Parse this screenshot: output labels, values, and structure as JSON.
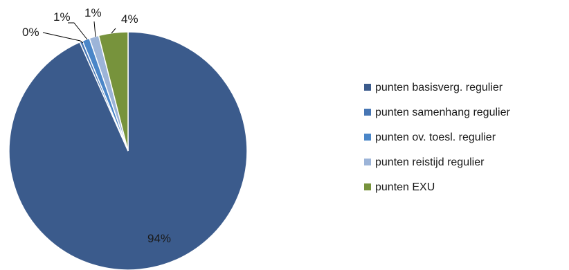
{
  "chart_data": {
    "type": "pie",
    "categories": [
      "punten basisverg. regulier",
      "punten samenhang regulier",
      "punten ov. toesl. regulier",
      "punten reistijd regulier",
      "punten EXU"
    ],
    "values": [
      94,
      0.4,
      1,
      1.3,
      4
    ],
    "data_labels": [
      "94%",
      "0%",
      "1%",
      "1%",
      "4%"
    ],
    "colors": [
      "#3b5b8c",
      "#4776b4",
      "#4a86c8",
      "#9cb4d8",
      "#77933c"
    ],
    "legend_position": "right",
    "start_angle": "12 o'clock, clockwise (largest slice first, counter-clockwise listing reversed)"
  }
}
